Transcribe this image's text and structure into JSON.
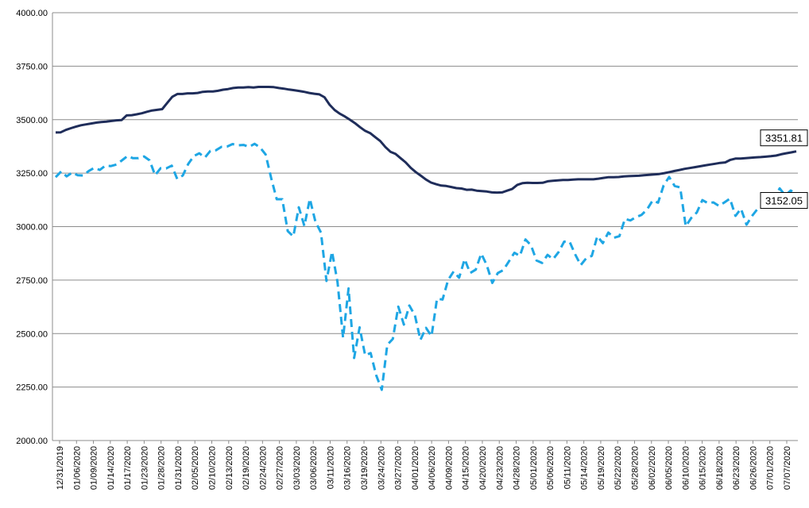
{
  "chart_data": {
    "type": "line",
    "title": "",
    "xlabel": "",
    "ylabel": "",
    "ylim": [
      2000,
      4000
    ],
    "y_ticks": [
      "2000.00",
      "2250.00",
      "2500.00",
      "2750.00",
      "3000.00",
      "3250.00",
      "3500.00",
      "3750.00",
      "4000.00"
    ],
    "grid": "horizontal",
    "x_tick_labels": [
      "12/31/2019",
      "01/06/2020",
      "01/09/2020",
      "01/14/2020",
      "01/17/2020",
      "01/23/2020",
      "01/28/2020",
      "01/31/2020",
      "02/05/2020",
      "02/10/2020",
      "02/13/2020",
      "02/19/2020",
      "02/24/2020",
      "02/27/2020",
      "03/03/2020",
      "03/06/2020",
      "03/11/2020",
      "03/16/2020",
      "03/19/2020",
      "03/24/2020",
      "03/27/2020",
      "04/01/2020",
      "04/06/2020",
      "04/09/2020",
      "04/15/2020",
      "04/20/2020",
      "04/23/2020",
      "04/28/2020",
      "05/01/2020",
      "05/06/2020",
      "05/11/2020",
      "05/14/2020",
      "05/19/2020",
      "05/22/2020",
      "05/28/2020",
      "06/02/2020",
      "06/05/2020",
      "06/10/2020",
      "06/15/2020",
      "06/18/2020",
      "06/23/2020",
      "06/26/2020",
      "07/01/2020",
      "07/07/2020"
    ],
    "series": [
      {
        "name": "",
        "color": "#1f2d5a",
        "style": "solid",
        "end_label": "3351.81",
        "values": [
          3440,
          3441,
          3452,
          3460,
          3467,
          3474,
          3478,
          3482,
          3486,
          3489,
          3491,
          3494,
          3497,
          3498,
          3520,
          3521,
          3525,
          3530,
          3537,
          3543,
          3546,
          3549,
          3578,
          3607,
          3620,
          3620,
          3623,
          3623,
          3625,
          3630,
          3632,
          3632,
          3635,
          3640,
          3643,
          3648,
          3650,
          3650,
          3652,
          3650,
          3653,
          3653,
          3653,
          3652,
          3648,
          3645,
          3641,
          3638,
          3634,
          3630,
          3625,
          3621,
          3618,
          3605,
          3570,
          3545,
          3528,
          3515,
          3500,
          3484,
          3465,
          3448,
          3437,
          3418,
          3400,
          3372,
          3350,
          3340,
          3320,
          3300,
          3275,
          3255,
          3238,
          3220,
          3206,
          3198,
          3192,
          3190,
          3185,
          3180,
          3178,
          3172,
          3173,
          3168,
          3166,
          3164,
          3160,
          3159,
          3160,
          3168,
          3176,
          3195,
          3203,
          3205,
          3204,
          3204,
          3205,
          3212,
          3214,
          3216,
          3218,
          3218,
          3220,
          3221,
          3221,
          3221,
          3221,
          3224,
          3228,
          3231,
          3231,
          3232,
          3235,
          3236,
          3237,
          3238,
          3240,
          3242,
          3244,
          3246,
          3250,
          3255,
          3260,
          3265,
          3270,
          3274,
          3278,
          3282,
          3286,
          3290,
          3294,
          3298,
          3300,
          3312,
          3318,
          3318,
          3320,
          3322,
          3324,
          3325,
          3327,
          3329,
          3332,
          3338,
          3343,
          3347,
          3351.81
        ]
      },
      {
        "name": "",
        "color": "#1ea6e4",
        "style": "dashed",
        "end_label": "3152.05",
        "values": [
          3231,
          3258,
          3235,
          3253,
          3240,
          3239,
          3260,
          3275,
          3265,
          3285,
          3283,
          3290,
          3310,
          3330,
          3320,
          3320,
          3328,
          3310,
          3240,
          3273,
          3272,
          3285,
          3223,
          3239,
          3293,
          3330,
          3343,
          3323,
          3354,
          3357,
          3373,
          3374,
          3386,
          3380,
          3382,
          3373,
          3387,
          3370,
          3337,
          3226,
          3128,
          3128,
          2979,
          2954,
          3090,
          3003,
          3130,
          3023,
          2972,
          2746,
          2883,
          2741,
          2480,
          2711,
          2386,
          2529,
          2398,
          2409,
          2305,
          2237,
          2447,
          2475,
          2626,
          2542,
          2631,
          2585,
          2470,
          2527,
          2488,
          2663,
          2659,
          2750,
          2790,
          2761,
          2848,
          2783,
          2799,
          2874,
          2820,
          2737,
          2783,
          2797,
          2837,
          2878,
          2863,
          2940,
          2913,
          2842,
          2830,
          2868,
          2848,
          2881,
          2930,
          2929,
          2870,
          2820,
          2852,
          2863,
          2955,
          2923,
          2972,
          2948,
          2955,
          3036,
          3029,
          3044,
          3055,
          3080,
          3122,
          3112,
          3193,
          3232,
          3190,
          3183,
          3002,
          3041,
          3066,
          3124,
          3110,
          3113,
          3097,
          3113,
          3131,
          3050,
          3084,
          3009,
          3050,
          3083,
          3100,
          3115,
          3130,
          3179,
          3145,
          3169,
          3152.05
        ]
      }
    ]
  }
}
